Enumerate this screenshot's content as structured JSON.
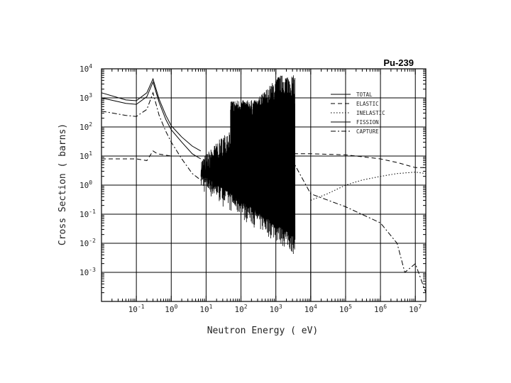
{
  "chart_data": {
    "type": "line",
    "title": "Pu-239",
    "xlabel": "Neutron Energy ( eV)",
    "ylabel": "Cross Section ( barns)",
    "xscale": "log",
    "yscale": "log",
    "xlim": [
      0.01,
      20000000
    ],
    "ylim": [
      0.0001,
      10000
    ],
    "grid": true,
    "legend_position": "top-right",
    "x_ticks": [
      {
        "value": 0.1,
        "base": "10",
        "exp": "-1"
      },
      {
        "value": 1,
        "base": "10",
        "exp": "0"
      },
      {
        "value": 10,
        "base": "10",
        "exp": "1"
      },
      {
        "value": 100,
        "base": "10",
        "exp": "2"
      },
      {
        "value": 1000,
        "base": "10",
        "exp": "3"
      },
      {
        "value": 10000,
        "base": "10",
        "exp": "4"
      },
      {
        "value": 100000,
        "base": "10",
        "exp": "5"
      },
      {
        "value": 1000000,
        "base": "10",
        "exp": "6"
      },
      {
        "value": 10000000,
        "base": "10",
        "exp": "7"
      }
    ],
    "y_ticks": [
      {
        "value": 10000,
        "base": "10",
        "exp": "4"
      },
      {
        "value": 1000,
        "base": "10",
        "exp": "3"
      },
      {
        "value": 100,
        "base": "10",
        "exp": "2"
      },
      {
        "value": 10,
        "base": "10",
        "exp": "1"
      },
      {
        "value": 1,
        "base": "10",
        "exp": "0"
      },
      {
        "value": 0.1,
        "base": "10",
        "exp": "-1"
      },
      {
        "value": 0.01,
        "base": "10",
        "exp": "-2"
      },
      {
        "value": 0.001,
        "base": "10",
        "exp": "-3"
      }
    ],
    "series": [
      {
        "name": "TOTAL",
        "dash": "solid",
        "x": [
          0.01,
          0.05,
          0.1,
          0.2,
          0.3,
          0.45,
          0.7,
          1,
          2,
          4,
          7
        ],
        "y": [
          1500,
          850,
          800,
          1500,
          4500,
          900,
          250,
          110,
          45,
          22,
          15
        ]
      },
      {
        "name": "ELASTIC",
        "dash": "dash",
        "x": [
          0.01,
          0.1,
          0.2,
          0.3,
          0.4,
          1,
          10,
          100,
          1000,
          3000,
          10000,
          100000,
          1000000,
          3000000,
          10000000,
          20000000
        ],
        "y": [
          8,
          8,
          7,
          15,
          12,
          10,
          10,
          11,
          12,
          12,
          12,
          11,
          8,
          6,
          4,
          4
        ]
      },
      {
        "name": "INELASTIC",
        "dash": "dot",
        "x": [
          10000,
          30000,
          100000,
          300000,
          1000000,
          3000000,
          10000000,
          20000000
        ],
        "y": [
          0.3,
          0.5,
          1,
          1.5,
          2,
          2.5,
          2.8,
          2.5
        ]
      },
      {
        "name": "FISSION",
        "dash": "solid",
        "x": [
          0.01,
          0.05,
          0.1,
          0.2,
          0.3,
          0.45,
          0.7,
          1,
          2,
          4,
          7
        ],
        "y": [
          1000,
          650,
          600,
          1100,
          3500,
          700,
          180,
          80,
          30,
          12,
          8
        ]
      },
      {
        "name": "CAPTURE",
        "dash": "dashdot",
        "x": [
          0.01,
          0.05,
          0.1,
          0.2,
          0.3,
          0.45,
          0.7,
          1,
          2,
          4,
          7,
          3500,
          10000,
          100000,
          1000000,
          3000000,
          5000000,
          10000000,
          20000000
        ],
        "y": [
          350,
          250,
          230,
          400,
          1500,
          250,
          70,
          30,
          8,
          2.5,
          1.5,
          5,
          0.5,
          0.18,
          0.05,
          0.01,
          0.001,
          0.002,
          0.0002
        ]
      }
    ],
    "resonance_region": {
      "x_start": 7,
      "x_end": 3500
    }
  }
}
